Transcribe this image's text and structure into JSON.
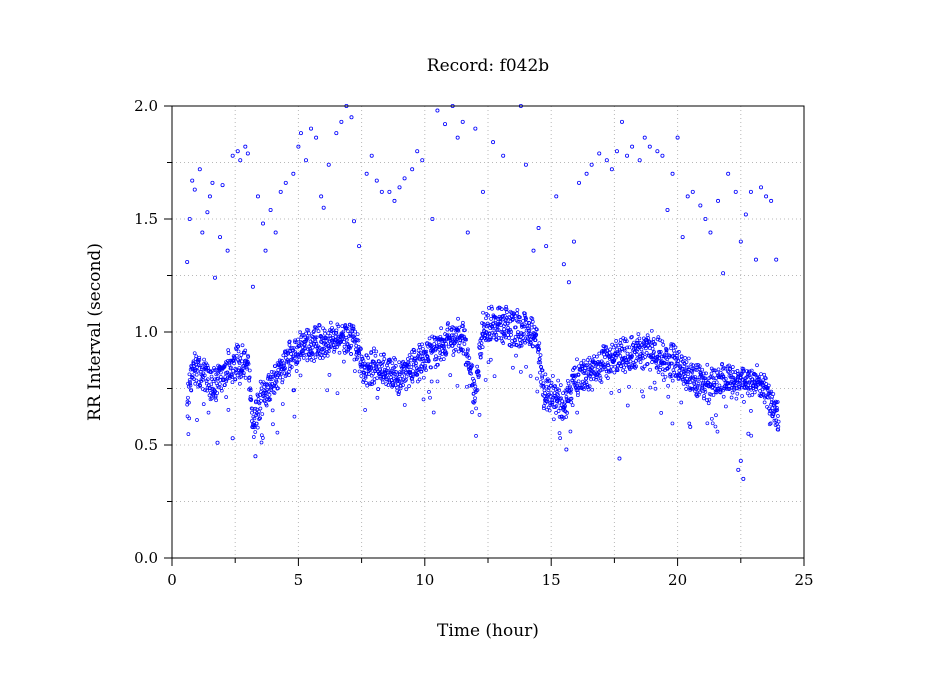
{
  "chart_data": {
    "type": "scatter",
    "title": "Record:  f042b",
    "xlabel": "Time (hour)",
    "ylabel": "RR Interval (second)",
    "xlim": [
      0,
      25
    ],
    "ylim": [
      0,
      2.0
    ],
    "x_ticks": [
      "0",
      "5",
      "10",
      "15",
      "20",
      "25"
    ],
    "y_ticks": [
      "0.0",
      "0.5",
      "1.0",
      "1.5",
      "2.0"
    ],
    "grid": true,
    "marker_color": "#0000ff",
    "main_trend": [
      [
        0.6,
        0.65
      ],
      [
        0.7,
        0.8
      ],
      [
        1.0,
        0.84
      ],
      [
        1.3,
        0.82
      ],
      [
        1.6,
        0.75
      ],
      [
        1.9,
        0.8
      ],
      [
        2.2,
        0.84
      ],
      [
        2.5,
        0.86
      ],
      [
        2.8,
        0.87
      ],
      [
        3.0,
        0.88
      ],
      [
        3.2,
        0.58
      ],
      [
        3.5,
        0.7
      ],
      [
        3.8,
        0.76
      ],
      [
        4.2,
        0.82
      ],
      [
        4.6,
        0.88
      ],
      [
        5.0,
        0.92
      ],
      [
        5.5,
        0.95
      ],
      [
        6.0,
        0.96
      ],
      [
        6.5,
        0.97
      ],
      [
        7.0,
        0.99
      ],
      [
        7.3,
        0.95
      ],
      [
        7.6,
        0.82
      ],
      [
        8.0,
        0.85
      ],
      [
        8.5,
        0.83
      ],
      [
        9.0,
        0.78
      ],
      [
        9.5,
        0.84
      ],
      [
        10.0,
        0.88
      ],
      [
        10.5,
        0.93
      ],
      [
        11.0,
        0.97
      ],
      [
        11.5,
        0.98
      ],
      [
        12.0,
        0.72
      ],
      [
        12.3,
        1.02
      ],
      [
        12.6,
        1.04
      ],
      [
        13.0,
        1.03
      ],
      [
        13.5,
        1.02
      ],
      [
        14.0,
        1.01
      ],
      [
        14.4,
        0.99
      ],
      [
        14.7,
        0.72
      ],
      [
        15.0,
        0.74
      ],
      [
        15.5,
        0.68
      ],
      [
        16.0,
        0.8
      ],
      [
        16.5,
        0.82
      ],
      [
        17.0,
        0.85
      ],
      [
        17.5,
        0.88
      ],
      [
        18.0,
        0.9
      ],
      [
        18.5,
        0.91
      ],
      [
        19.0,
        0.92
      ],
      [
        19.5,
        0.88
      ],
      [
        20.0,
        0.86
      ],
      [
        20.5,
        0.8
      ],
      [
        21.0,
        0.78
      ],
      [
        21.5,
        0.77
      ],
      [
        22.0,
        0.79
      ],
      [
        22.5,
        0.77
      ],
      [
        23.0,
        0.78
      ],
      [
        23.5,
        0.76
      ],
      [
        24.0,
        0.6
      ]
    ],
    "outliers": [
      [
        0.6,
        1.31
      ],
      [
        0.7,
        1.5
      ],
      [
        0.8,
        1.67
      ],
      [
        0.9,
        1.63
      ],
      [
        1.1,
        1.72
      ],
      [
        1.2,
        1.44
      ],
      [
        1.4,
        1.53
      ],
      [
        1.5,
        1.6
      ],
      [
        1.6,
        1.66
      ],
      [
        1.7,
        1.24
      ],
      [
        1.9,
        1.42
      ],
      [
        2.0,
        1.65
      ],
      [
        2.2,
        1.36
      ],
      [
        2.4,
        1.78
      ],
      [
        2.6,
        1.8
      ],
      [
        2.7,
        1.76
      ],
      [
        2.9,
        1.82
      ],
      [
        3.0,
        1.79
      ],
      [
        3.2,
        1.2
      ],
      [
        3.4,
        1.6
      ],
      [
        3.6,
        1.48
      ],
      [
        3.7,
        1.36
      ],
      [
        3.9,
        1.54
      ],
      [
        4.1,
        1.44
      ],
      [
        4.3,
        1.62
      ],
      [
        4.5,
        1.66
      ],
      [
        4.8,
        1.7
      ],
      [
        5.0,
        1.82
      ],
      [
        5.1,
        1.88
      ],
      [
        5.3,
        1.76
      ],
      [
        5.5,
        1.9
      ],
      [
        5.7,
        1.86
      ],
      [
        5.9,
        1.6
      ],
      [
        6.0,
        1.55
      ],
      [
        6.2,
        1.74
      ],
      [
        6.5,
        1.88
      ],
      [
        6.7,
        1.93
      ],
      [
        6.9,
        2.0
      ],
      [
        7.1,
        1.95
      ],
      [
        7.2,
        1.49
      ],
      [
        7.4,
        1.38
      ],
      [
        7.7,
        1.7
      ],
      [
        7.9,
        1.78
      ],
      [
        8.1,
        1.67
      ],
      [
        8.3,
        1.62
      ],
      [
        8.6,
        1.62
      ],
      [
        8.8,
        1.58
      ],
      [
        9.0,
        1.64
      ],
      [
        9.2,
        1.68
      ],
      [
        9.5,
        1.72
      ],
      [
        9.7,
        1.8
      ],
      [
        9.9,
        1.76
      ],
      [
        10.3,
        1.5
      ],
      [
        10.5,
        1.98
      ],
      [
        10.8,
        1.92
      ],
      [
        11.1,
        2.0
      ],
      [
        11.3,
        1.86
      ],
      [
        11.5,
        1.93
      ],
      [
        11.7,
        1.44
      ],
      [
        12.0,
        1.9
      ],
      [
        12.3,
        1.62
      ],
      [
        12.7,
        1.84
      ],
      [
        13.1,
        1.78
      ],
      [
        13.8,
        2.0
      ],
      [
        14.0,
        1.74
      ],
      [
        14.3,
        1.36
      ],
      [
        14.5,
        1.46
      ],
      [
        14.8,
        1.38
      ],
      [
        15.2,
        1.6
      ],
      [
        15.5,
        1.3
      ],
      [
        15.7,
        1.22
      ],
      [
        15.9,
        1.4
      ],
      [
        16.1,
        1.66
      ],
      [
        16.4,
        1.7
      ],
      [
        16.6,
        1.74
      ],
      [
        16.9,
        1.79
      ],
      [
        17.2,
        1.76
      ],
      [
        17.4,
        1.72
      ],
      [
        17.6,
        1.8
      ],
      [
        17.8,
        1.93
      ],
      [
        18.0,
        1.78
      ],
      [
        18.2,
        1.82
      ],
      [
        18.5,
        1.76
      ],
      [
        18.7,
        1.86
      ],
      [
        18.9,
        1.82
      ],
      [
        19.2,
        1.8
      ],
      [
        19.4,
        1.78
      ],
      [
        19.6,
        1.54
      ],
      [
        19.8,
        1.7
      ],
      [
        20.0,
        1.86
      ],
      [
        20.2,
        1.42
      ],
      [
        20.4,
        1.6
      ],
      [
        20.6,
        1.62
      ],
      [
        20.9,
        1.56
      ],
      [
        21.1,
        1.5
      ],
      [
        21.3,
        1.44
      ],
      [
        21.6,
        1.58
      ],
      [
        21.8,
        1.26
      ],
      [
        22.0,
        1.7
      ],
      [
        22.3,
        1.62
      ],
      [
        22.5,
        1.4
      ],
      [
        22.7,
        1.52
      ],
      [
        22.9,
        1.62
      ],
      [
        23.1,
        1.32
      ],
      [
        23.3,
        1.64
      ],
      [
        23.5,
        1.6
      ],
      [
        23.7,
        1.58
      ],
      [
        23.9,
        1.32
      ],
      [
        1.8,
        0.51
      ],
      [
        2.4,
        0.53
      ],
      [
        3.3,
        0.45
      ],
      [
        15.6,
        0.48
      ],
      [
        17.7,
        0.44
      ],
      [
        22.4,
        0.39
      ],
      [
        22.6,
        0.35
      ],
      [
        22.5,
        0.43
      ],
      [
        20.5,
        0.58
      ],
      [
        22.8,
        0.55
      ]
    ]
  }
}
